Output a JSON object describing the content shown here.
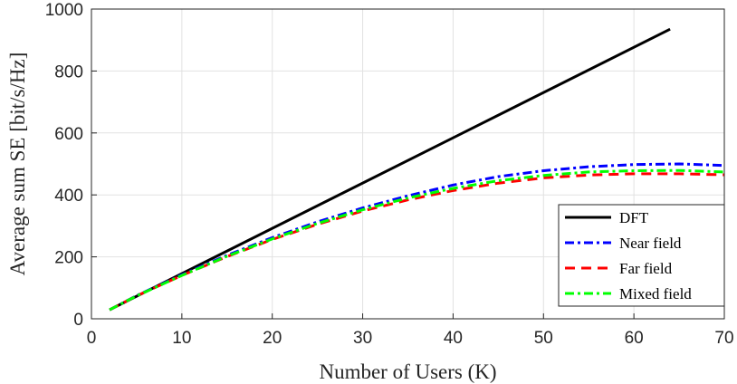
{
  "chart_data": {
    "type": "line",
    "xlabel": "Number of Users (K)",
    "ylabel": "Average sum SE [bit/s/Hz]",
    "xlim": [
      0,
      70
    ],
    "ylim": [
      0,
      1000
    ],
    "xticks": [
      0,
      10,
      20,
      30,
      40,
      50,
      60,
      70
    ],
    "yticks": [
      0,
      200,
      400,
      600,
      800,
      1000
    ],
    "grid": true,
    "legend_position": "bottom-right",
    "series": [
      {
        "name": "DFT",
        "color": "#000000",
        "style": "solid",
        "x": [
          2,
          64
        ],
        "y": [
          29,
          935
        ]
      },
      {
        "name": "Near field",
        "color": "#0000ff",
        "style": "dashdot",
        "x": [
          2,
          5,
          10,
          15,
          20,
          25,
          30,
          35,
          40,
          45,
          50,
          55,
          60,
          65,
          70
        ],
        "y": [
          29,
          75,
          142,
          205,
          262,
          313,
          358,
          397,
          432,
          459,
          478,
          491,
          498,
          500,
          495
        ]
      },
      {
        "name": "Far field",
        "color": "#ff0000",
        "style": "dashed",
        "x": [
          2,
          5,
          10,
          15,
          20,
          25,
          30,
          35,
          40,
          45,
          50,
          55,
          60,
          65,
          70
        ],
        "y": [
          29,
          74,
          140,
          201,
          256,
          305,
          348,
          384,
          414,
          438,
          455,
          464,
          468,
          468,
          465
        ]
      },
      {
        "name": "Mixed field",
        "color": "#00ff00",
        "style": "dashdot",
        "x": [
          2,
          5,
          10,
          15,
          20,
          25,
          30,
          35,
          40,
          45,
          50,
          55,
          60,
          65,
          70
        ],
        "y": [
          29,
          74,
          140,
          202,
          258,
          308,
          352,
          390,
          421,
          446,
          463,
          474,
          478,
          479,
          474
        ]
      }
    ]
  }
}
